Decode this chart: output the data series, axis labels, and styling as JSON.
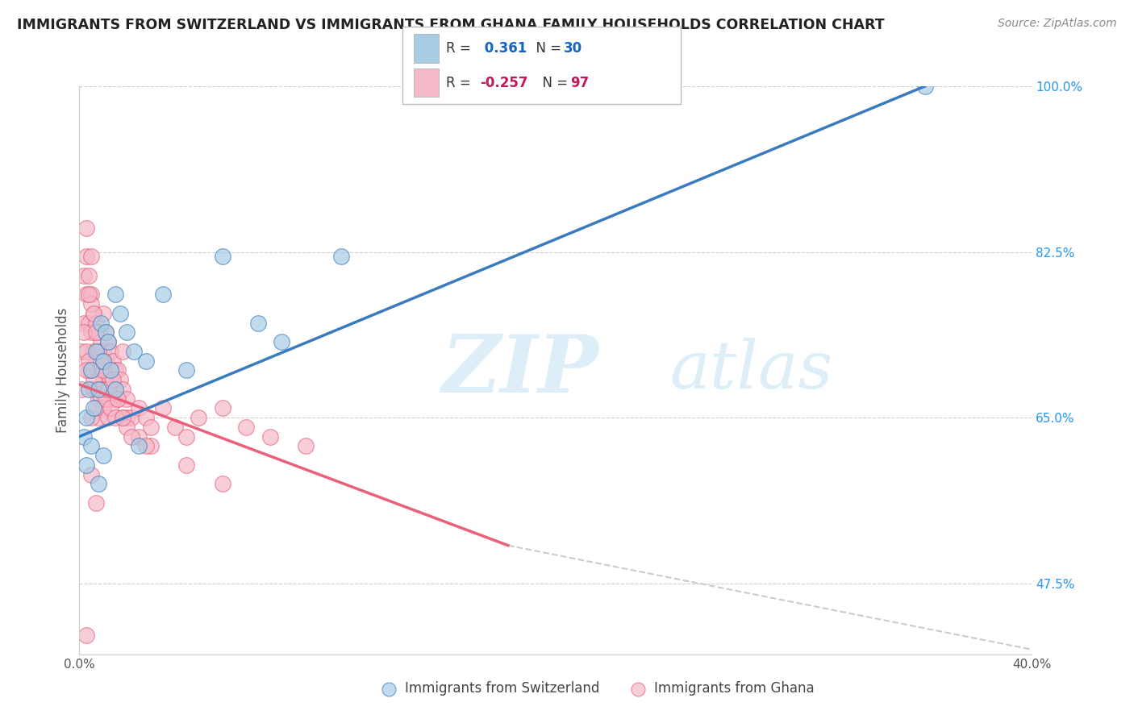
{
  "title": "IMMIGRANTS FROM SWITZERLAND VS IMMIGRANTS FROM GHANA FAMILY HOUSEHOLDS CORRELATION CHART",
  "source": "Source: ZipAtlas.com",
  "ylabel": "Family Households",
  "legend_label1": "Immigrants from Switzerland",
  "legend_label2": "Immigrants from Ghana",
  "r1": 0.361,
  "n1": 30,
  "r2": -0.257,
  "n2": 97,
  "xlim": [
    0.0,
    40.0
  ],
  "ylim": [
    40.0,
    100.0
  ],
  "color_swiss": "#a8cce4",
  "color_ghana": "#f4b8c8",
  "color_swiss_line": "#3a7bbf",
  "color_ghana_line": "#e8607a",
  "color_dashed": "#cccccc",
  "background_color": "#ffffff",
  "grid_color": "#d0d0d0",
  "watermark_color": "#ddeef8",
  "swiss_line_x0": 0.0,
  "swiss_line_y0": 63.0,
  "swiss_line_x1": 35.5,
  "swiss_line_y1": 100.0,
  "ghana_solid_x0": 0.0,
  "ghana_solid_y0": 68.5,
  "ghana_solid_x1": 18.0,
  "ghana_solid_y1": 51.5,
  "ghana_dash_x0": 18.0,
  "ghana_dash_y0": 51.5,
  "ghana_dash_x1": 40.0,
  "ghana_dash_y1": 40.5,
  "swiss_points_x": [
    0.3,
    0.4,
    0.5,
    0.6,
    0.7,
    0.8,
    0.9,
    1.0,
    1.1,
    1.2,
    1.3,
    1.5,
    1.7,
    2.0,
    2.3,
    2.8,
    3.5,
    4.5,
    6.0,
    7.5,
    8.5,
    11.0,
    35.5,
    0.3,
    0.2,
    0.5,
    0.8,
    1.0,
    1.5,
    2.5
  ],
  "swiss_points_y": [
    65.0,
    68.0,
    70.0,
    66.0,
    72.0,
    68.0,
    75.0,
    71.0,
    74.0,
    73.0,
    70.0,
    78.0,
    76.0,
    74.0,
    72.0,
    71.0,
    78.0,
    70.0,
    82.0,
    75.0,
    73.0,
    82.0,
    100.0,
    60.0,
    63.0,
    62.0,
    58.0,
    61.0,
    68.0,
    62.0
  ],
  "ghana_points_x": [
    0.1,
    0.1,
    0.2,
    0.2,
    0.3,
    0.3,
    0.3,
    0.4,
    0.4,
    0.4,
    0.5,
    0.5,
    0.5,
    0.5,
    0.6,
    0.6,
    0.6,
    0.7,
    0.7,
    0.7,
    0.8,
    0.8,
    0.8,
    0.9,
    0.9,
    0.9,
    1.0,
    1.0,
    1.0,
    1.0,
    1.1,
    1.1,
    1.1,
    1.2,
    1.2,
    1.2,
    1.3,
    1.3,
    1.4,
    1.4,
    1.5,
    1.5,
    1.6,
    1.6,
    1.7,
    1.8,
    1.8,
    2.0,
    2.0,
    2.2,
    2.5,
    2.8,
    3.0,
    3.5,
    4.0,
    4.5,
    5.0,
    6.0,
    7.0,
    8.0,
    9.5,
    1.8,
    0.8,
    0.5,
    0.7,
    1.0,
    1.2,
    0.3,
    0.4,
    0.6,
    0.9,
    1.1,
    1.3,
    1.5,
    2.0,
    0.2,
    0.3,
    2.5,
    3.0,
    0.5,
    0.7,
    0.4,
    0.6,
    0.8,
    1.0,
    1.2,
    0.9,
    1.4,
    1.6,
    1.8,
    2.2,
    2.8,
    4.5,
    6.0,
    0.5,
    0.7,
    0.3
  ],
  "ghana_points_y": [
    72.0,
    68.0,
    80.0,
    75.0,
    85.0,
    78.0,
    82.0,
    80.0,
    75.0,
    70.0,
    82.0,
    78.0,
    74.0,
    70.0,
    76.0,
    72.0,
    68.0,
    75.0,
    71.0,
    68.0,
    74.0,
    70.0,
    67.0,
    73.0,
    70.0,
    67.0,
    76.0,
    72.0,
    69.0,
    66.0,
    74.0,
    71.0,
    68.0,
    73.0,
    70.0,
    67.0,
    72.0,
    69.0,
    71.0,
    68.0,
    70.0,
    67.0,
    70.0,
    67.0,
    69.0,
    68.0,
    65.0,
    67.0,
    65.0,
    65.0,
    66.0,
    65.0,
    64.0,
    66.0,
    64.0,
    63.0,
    65.0,
    66.0,
    64.0,
    63.0,
    62.0,
    72.0,
    65.0,
    65.0,
    66.0,
    68.0,
    65.0,
    72.0,
    71.0,
    69.0,
    68.0,
    67.0,
    66.0,
    65.0,
    64.0,
    74.0,
    70.0,
    63.0,
    62.0,
    77.0,
    74.0,
    78.0,
    76.0,
    72.0,
    70.0,
    68.0,
    71.0,
    69.0,
    67.0,
    65.0,
    63.0,
    62.0,
    60.0,
    58.0,
    59.0,
    56.0,
    42.0
  ]
}
